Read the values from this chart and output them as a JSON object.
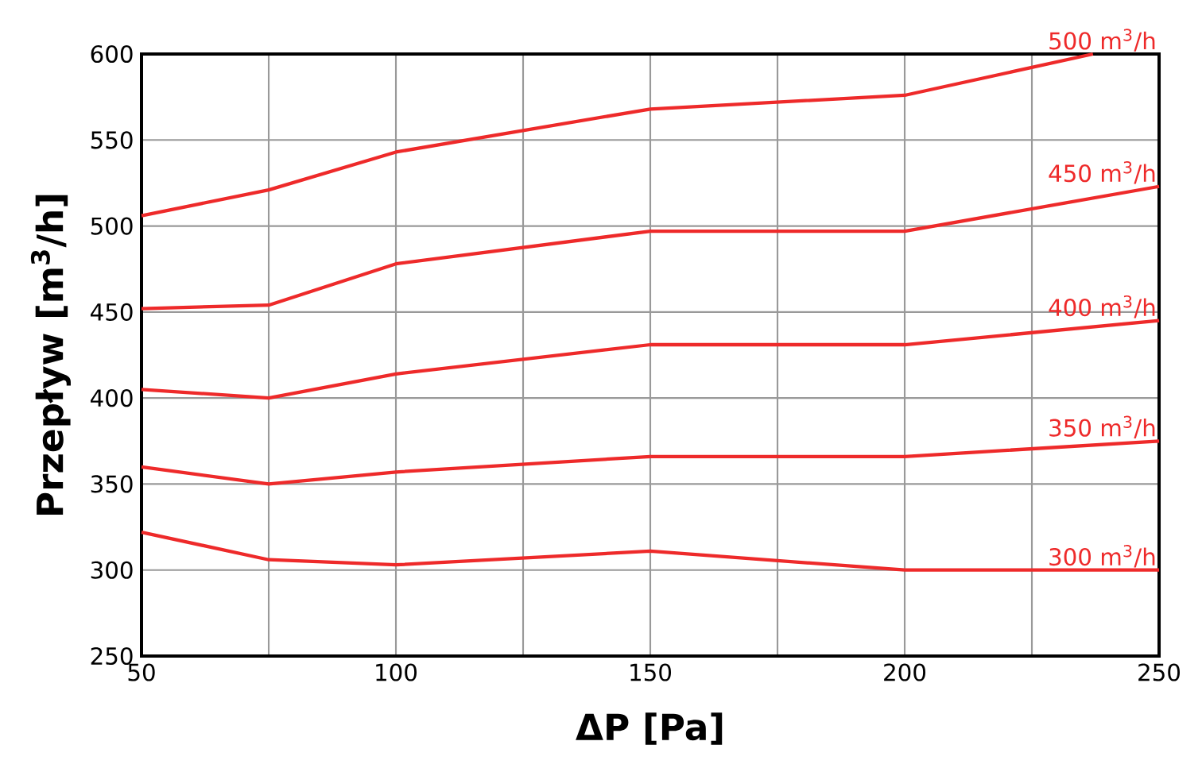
{
  "chart_data": {
    "type": "line",
    "xlabel": "ΔP [Pa]",
    "ylabel": "Przepływ [m$^{3}$/h]",
    "x": [
      50,
      75,
      100,
      150,
      200,
      250
    ],
    "xlim": [
      50,
      250
    ],
    "ylim": [
      250,
      600
    ],
    "xticks": [
      50,
      {
        "value": 75,
        "label": null
      },
      100,
      {
        "value": 125,
        "label": null
      },
      150,
      {
        "value": 175,
        "label": null
      },
      200,
      {
        "value": 225,
        "label": null
      },
      250
    ],
    "yticks": [
      250,
      300,
      350,
      400,
      450,
      500,
      550,
      600
    ],
    "grid": true,
    "legend": false,
    "line_style": "solid",
    "series": [
      {
        "name": "500 m$^{3}$/h",
        "color": "#ee2a2a",
        "x": [
          50,
          75,
          100,
          150,
          200,
          237
        ],
        "values": [
          506,
          521,
          543,
          568,
          576,
          600
        ]
      },
      {
        "name": "450 m$^{3}$/h",
        "color": "#ee2a2a",
        "values": [
          452,
          454,
          478,
          497,
          497,
          523
        ]
      },
      {
        "name": "400 m$^{3}$/h",
        "color": "#ee2a2a",
        "values": [
          405,
          400,
          414,
          431,
          431,
          445
        ]
      },
      {
        "name": "350 m$^{3}$/h",
        "color": "#ee2a2a",
        "values": [
          360,
          350,
          357,
          366,
          366,
          375
        ]
      },
      {
        "name": "300 m$^{3}$/h",
        "color": "#ee2a2a",
        "values": [
          322,
          306,
          303,
          311,
          300,
          300
        ]
      }
    ]
  }
}
